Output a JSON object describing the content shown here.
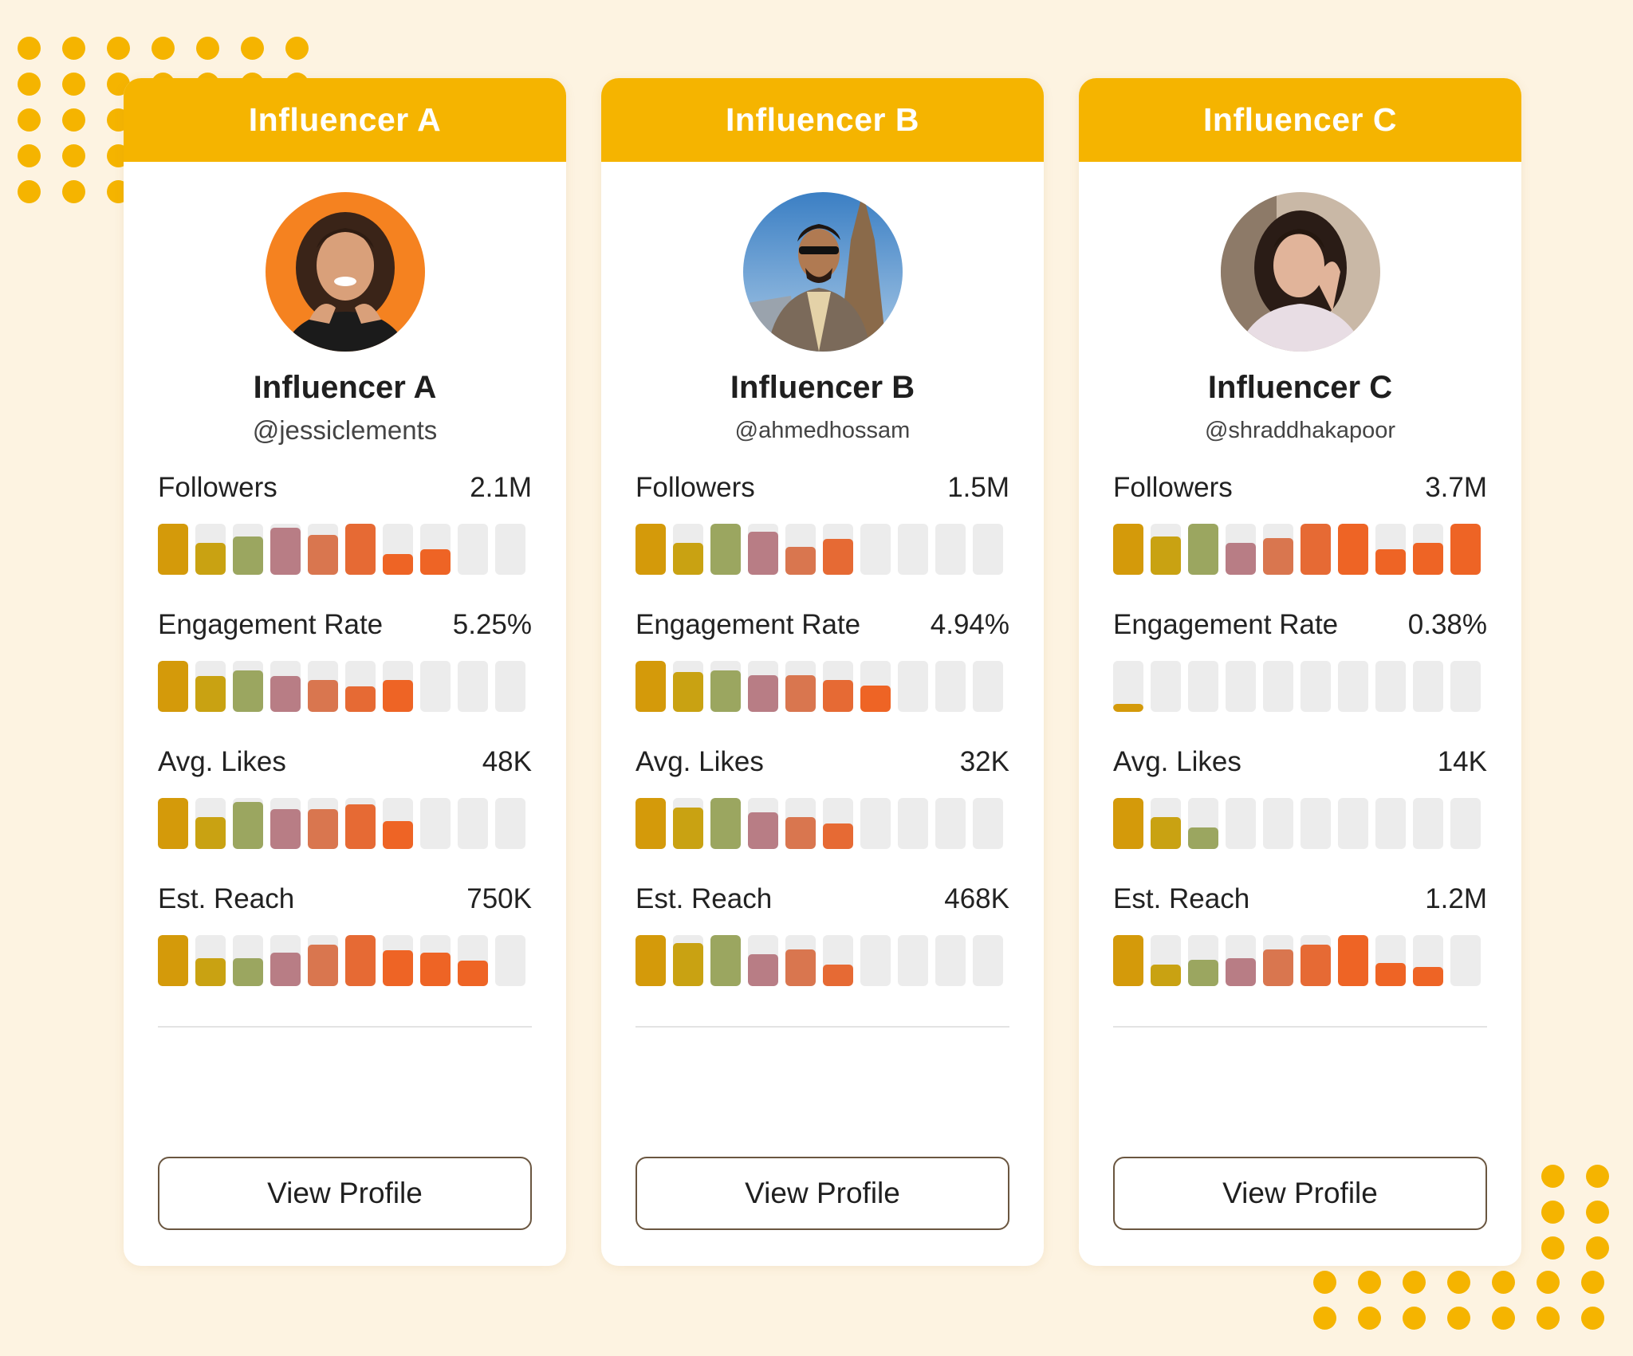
{
  "palette": [
    "#d49a0a",
    "#c9a212",
    "#9ba660",
    "#b87d85",
    "#d9764f",
    "#e66a34",
    "#ee6425",
    "#ee6425",
    "#ee6425",
    "#ee6425"
  ],
  "empty_bar_color": "#ececec",
  "influencers": [
    {
      "header": "Influencer A",
      "name": "Influencer A",
      "handle": "@jessiclements",
      "avatar_icon": "woman-portrait-orange-bg",
      "metrics": [
        {
          "label": "Followers",
          "value": "2.1M",
          "levels": [
            1.0,
            0.62,
            0.75,
            0.92,
            0.78,
            1.0,
            0.4,
            0.5,
            0,
            0
          ]
        },
        {
          "label": "Engagement Rate",
          "value": "5.25%",
          "levels": [
            1.0,
            0.7,
            0.82,
            0.7,
            0.62,
            0.5,
            0.62,
            0,
            0,
            0
          ]
        },
        {
          "label": "Avg. Likes",
          "value": "48K",
          "levels": [
            1.0,
            0.62,
            0.92,
            0.78,
            0.78,
            0.87,
            0.55,
            0,
            0,
            0
          ]
        },
        {
          "label": "Est. Reach",
          "value": "750K",
          "levels": [
            1.0,
            0.55,
            0.55,
            0.65,
            0.82,
            1.0,
            0.7,
            0.65,
            0.5,
            0
          ]
        }
      ],
      "button_label": "View Profile"
    },
    {
      "header": "Influencer B",
      "name": "Influencer B",
      "handle": "@ahmedhossam",
      "avatar_icon": "man-sunglasses-eiffel-tower",
      "metrics": [
        {
          "label": "Followers",
          "value": "1.5M",
          "levels": [
            1.0,
            0.62,
            1.0,
            0.85,
            0.55,
            0.7,
            0,
            0,
            0,
            0
          ]
        },
        {
          "label": "Engagement Rate",
          "value": "4.94%",
          "levels": [
            1.0,
            0.78,
            0.82,
            0.72,
            0.72,
            0.62,
            0.52,
            0,
            0,
            0
          ]
        },
        {
          "label": "Avg. Likes",
          "value": "32K",
          "levels": [
            1.0,
            0.82,
            1.0,
            0.72,
            0.62,
            0.5,
            0,
            0,
            0,
            0
          ]
        },
        {
          "label": "Est. Reach",
          "value": "468K",
          "levels": [
            1.0,
            0.85,
            1.0,
            0.62,
            0.72,
            0.42,
            0,
            0,
            0,
            0
          ]
        }
      ],
      "button_label": "View Profile"
    },
    {
      "header": "Influencer C",
      "name": "Influencer C",
      "handle": "@shraddhakapoor",
      "avatar_icon": "woman-portrait-indoor",
      "metrics": [
        {
          "label": "Followers",
          "value": "3.7M",
          "levels": [
            1.0,
            0.75,
            1.0,
            0.62,
            0.72,
            1.0,
            1.0,
            0.5,
            0.62,
            1.0
          ]
        },
        {
          "label": "Engagement Rate",
          "value": "0.38%",
          "levels": [
            0.15,
            0,
            0,
            0,
            0,
            0,
            0,
            0,
            0,
            0
          ]
        },
        {
          "label": "Avg. Likes",
          "value": "14K",
          "levels": [
            1.0,
            0.62,
            0.42,
            0,
            0,
            0,
            0,
            0,
            0,
            0
          ]
        },
        {
          "label": "Est. Reach",
          "value": "1.2M",
          "levels": [
            1.0,
            0.42,
            0.52,
            0.55,
            0.72,
            0.82,
            1.0,
            0.45,
            0.38,
            0
          ]
        }
      ],
      "button_label": "View Profile"
    }
  ]
}
